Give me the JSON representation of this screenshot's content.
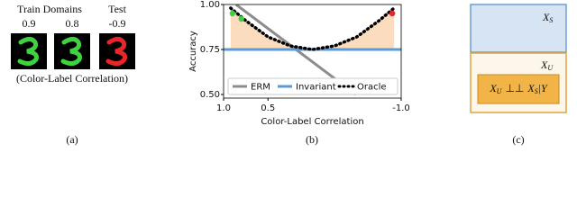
{
  "panel_a": {
    "headers": [
      "Train Domains",
      "Test"
    ],
    "correlations": [
      0.9,
      0.8,
      -0.9
    ],
    "digit_colors": [
      "#3fd13f",
      "#3fd13f",
      "#e8262a"
    ],
    "caption": "(Color-Label Correlation)"
  },
  "chart_data": {
    "type": "line",
    "xlabel": "Color-Label Correlation",
    "ylabel": "Accuracy",
    "xlim": [
      1,
      -1
    ],
    "ylim": [
      0.48,
      1
    ],
    "xticks": [
      {
        "value": 1,
        "label": "1.0"
      },
      0.5,
      {
        "value": -1,
        "label": "-1.0"
      }
    ],
    "yticks": [
      {
        "value": 0.5,
        "label": "0.50"
      },
      {
        "value": 0.75,
        "label": "0.75"
      },
      {
        "value": 1,
        "label": "1.00"
      }
    ],
    "series": [
      {
        "name": "ERM",
        "color": "#8c8c8c",
        "style": "solid",
        "x": [
          0.86,
          -0.49
        ],
        "values": [
          1,
          0.5
        ]
      },
      {
        "name": "Invariant",
        "color": "#5b9bd5",
        "style": "solid",
        "x": [
          1,
          -1
        ],
        "values": [
          0.75,
          0.75
        ]
      },
      {
        "name": "Oracle",
        "color": "#000000",
        "style": "dotted",
        "x": [
          0.92,
          0.75,
          0.5,
          0.25,
          0,
          -0.25,
          -0.5,
          -0.75,
          -0.92
        ],
        "values": [
          0.98,
          0.91,
          0.82,
          0.77,
          0.75,
          0.77,
          0.82,
          0.91,
          0.98
        ]
      }
    ],
    "points": [
      {
        "x": 0.9,
        "y": 0.95,
        "color": "#3fd13f"
      },
      {
        "x": 0.8,
        "y": 0.92,
        "color": "#3fd13f"
      },
      {
        "x": -0.9,
        "y": 0.95,
        "color": "#e8262a"
      }
    ],
    "fill_color": "#fcdcbf",
    "legend": "lower right"
  },
  "panel_c": {
    "top": {
      "base": "X",
      "sub": "S"
    },
    "bottom": {
      "base": "X",
      "sub": "U"
    },
    "inner": [
      "X",
      "U",
      "⊥⊥",
      "X",
      "S",
      "|Y"
    ]
  },
  "captions": [
    "(a)",
    "(b)",
    "(c)"
  ]
}
